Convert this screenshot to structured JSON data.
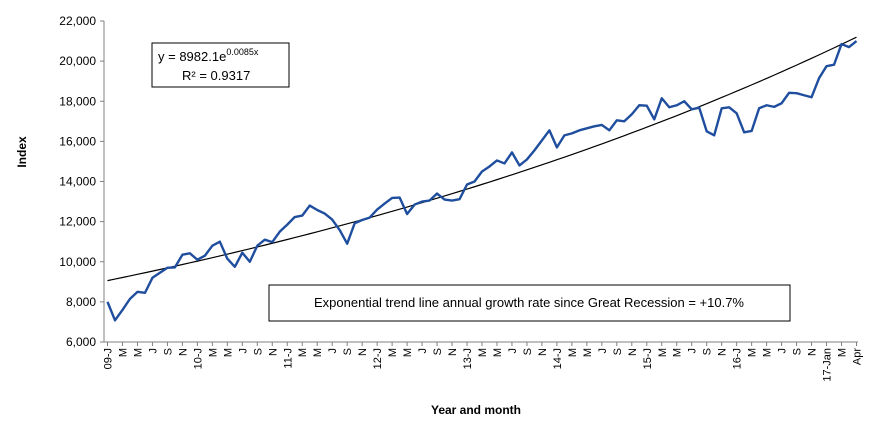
{
  "chart_data": {
    "type": "line",
    "title": "",
    "xlabel": "Year and month",
    "ylabel": "Index",
    "ylim": [
      6000,
      22000
    ],
    "yticks": [
      "6,000",
      "8,000",
      "10,000",
      "12,000",
      "14,000",
      "16,000",
      "18,000",
      "20,000",
      "22,000"
    ],
    "ytick_values": [
      6000,
      8000,
      10000,
      12000,
      14000,
      16000,
      18000,
      20000,
      22000
    ],
    "x_tick_labels": [
      "09-J",
      "M",
      "M",
      "J",
      "S",
      "N",
      "10-J",
      "M",
      "M",
      "J",
      "S",
      "N",
      "11-J",
      "M",
      "M",
      "J",
      "S",
      "N",
      "12-J",
      "M",
      "M",
      "J",
      "S",
      "N",
      "13-J",
      "M",
      "M",
      "J",
      "S",
      "N",
      "14-J",
      "M",
      "M",
      "J",
      "S",
      "N",
      "15-J",
      "M",
      "M",
      "J",
      "S",
      "N",
      "16-J",
      "M",
      "M",
      "J",
      "S",
      "N",
      "17-Jan",
      "M",
      "Apr"
    ],
    "x_start": "2009-01",
    "x_end": "2017-04",
    "grid": "none",
    "series": [
      {
        "color": "#1f4e9e",
        "values": [
          8000,
          7080,
          7600,
          8150,
          8500,
          8450,
          9200,
          9450,
          9700,
          9720,
          10350,
          10420,
          10100,
          10300,
          10800,
          11000,
          10150,
          9750,
          10450,
          10000,
          10800,
          11100,
          10980,
          11500,
          11850,
          12230,
          12300,
          12800,
          12580,
          12400,
          12100,
          11580,
          10900,
          11920,
          12080,
          12200,
          12600,
          12900,
          13180,
          13200,
          12380,
          12850,
          13000,
          13050,
          13400,
          13100,
          13050,
          13120,
          13850,
          14000,
          14500,
          14750,
          15050,
          14900,
          15450,
          14800,
          15100,
          15550,
          16050,
          16550,
          15700,
          16300,
          16400,
          16550,
          16650,
          16750,
          16820,
          16550,
          17050,
          17000,
          17350,
          17800,
          17780,
          17100,
          18150,
          17700,
          17800,
          18000,
          17600,
          17680,
          16500,
          16300,
          17650,
          17700,
          17400,
          16450,
          16520,
          17650,
          17800,
          17720,
          17900,
          18420,
          18400,
          18300,
          18200,
          19150,
          19750,
          19820,
          20850,
          20700,
          21000
        ]
      }
    ],
    "trendline": {
      "type": "exponential",
      "equation": "y = 8982.1e",
      "equation_exponent": "0.0085x",
      "r_squared": "R² = 0.9317",
      "a": 8982.1,
      "b": 0.0085,
      "color": "#000000"
    },
    "annotation": "Exponential trend line annual growth rate since Great Recession = +10.7%"
  }
}
